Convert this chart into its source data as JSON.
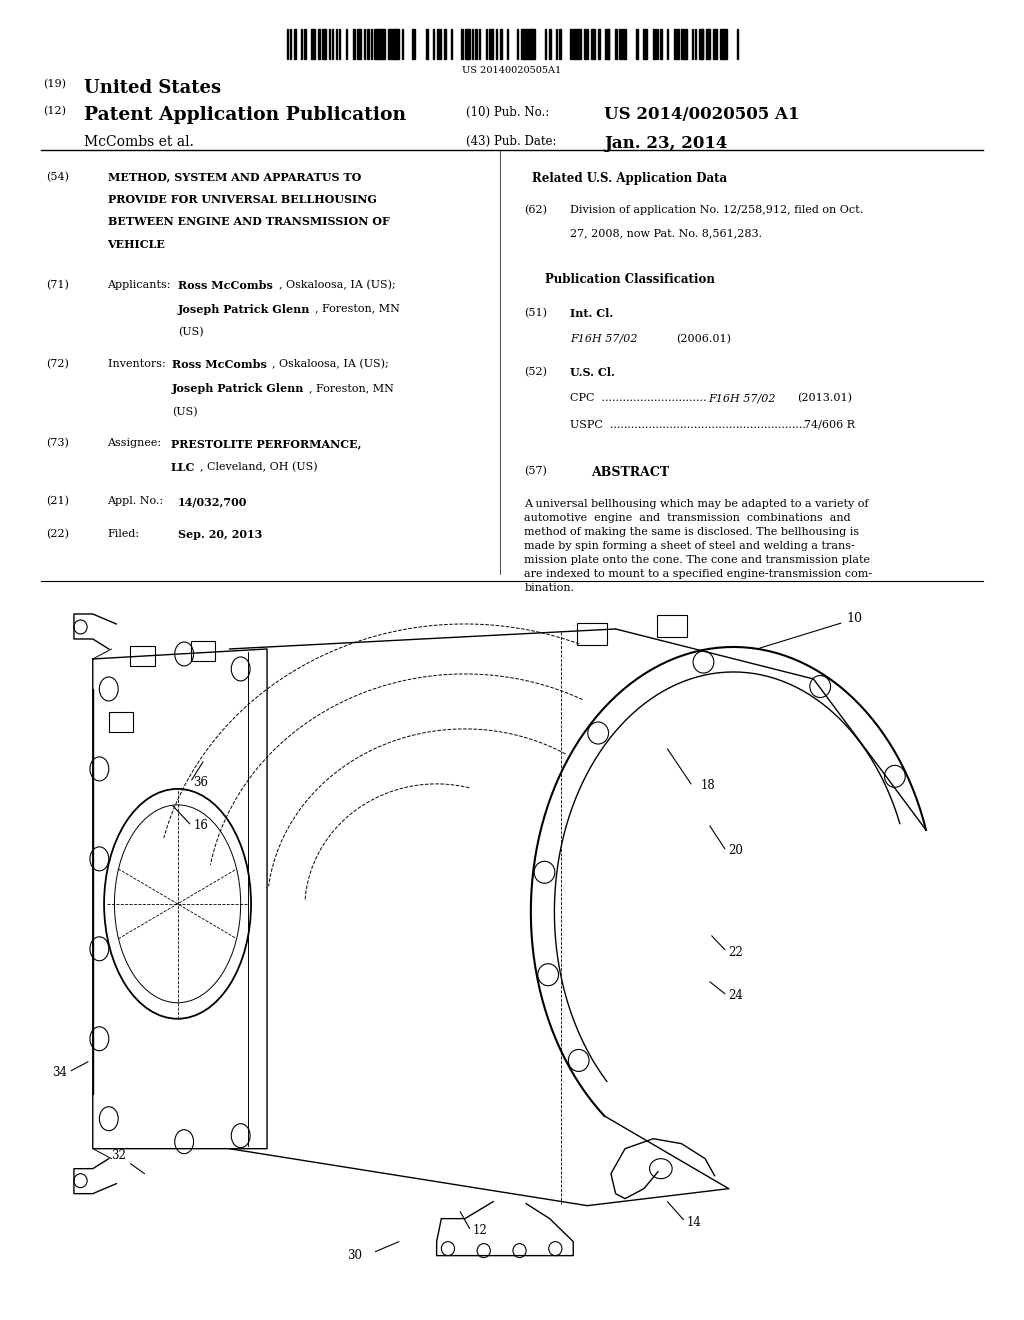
{
  "background_color": "#ffffff",
  "page_width": 10.24,
  "page_height": 13.2,
  "barcode_text": "US 20140020505A1",
  "header": {
    "country_num": "(19)",
    "country": "United States",
    "type_num": "(12)",
    "type": "Patent Application Publication",
    "pub_num_label": "(10) Pub. No.:",
    "pub_num": "US 2014/0020505 A1",
    "inventors": "McCombs et al.",
    "date_label": "(43) Pub. Date:",
    "date": "Jan. 23, 2014"
  },
  "abstract_text": "A universal bellhousing which may be adapted to a variety of\nautomotive  engine  and  transmission  combinations  and\nmethod of making the same is disclosed. The bellhousing is\nmade by spin forming a sheet of steel and welding a trans-\nmission plate onto the cone. The cone and transmission plate\nare indexed to mount to a specified engine-transmission com-\nbination."
}
